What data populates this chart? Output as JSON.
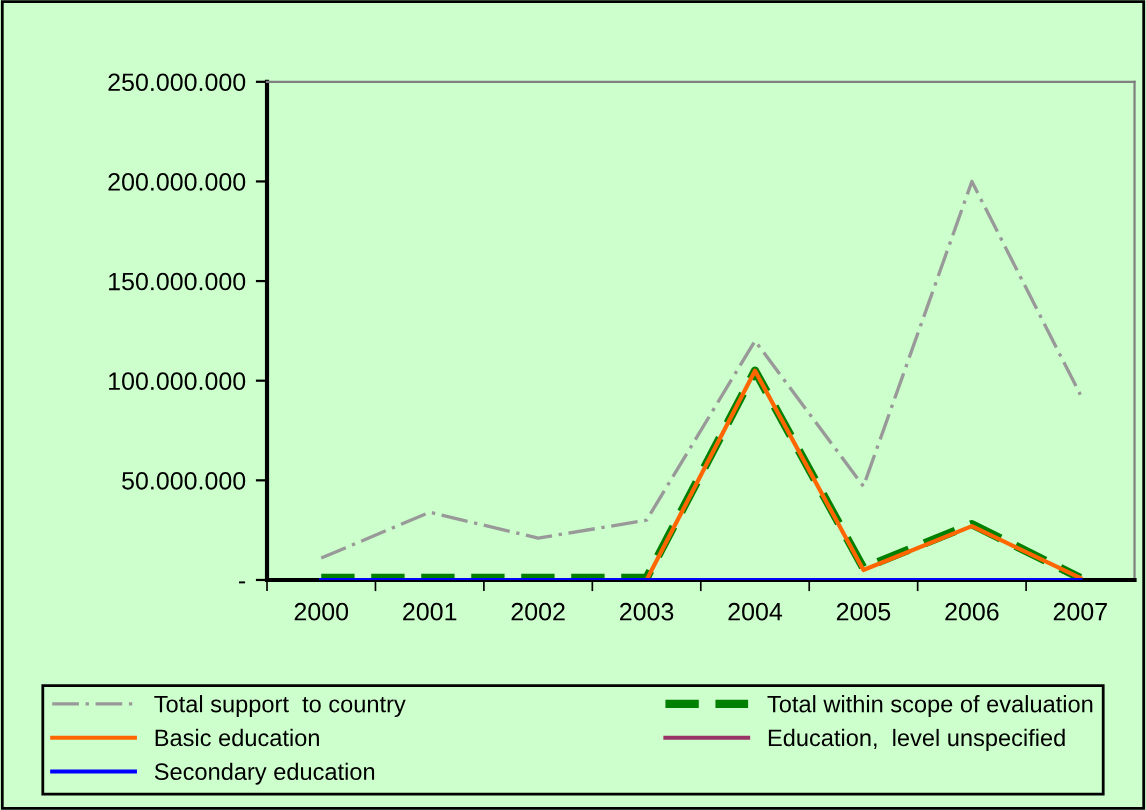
{
  "chart_data": {
    "type": "line",
    "categories": [
      "2000",
      "2001",
      "2002",
      "2003",
      "2004",
      "2005",
      "2006",
      "2007"
    ],
    "series": [
      {
        "name": "Total support  to country",
        "color": "#999999",
        "line_style": "dashdot",
        "values": [
          11000000,
          34000000,
          21000000,
          30000000,
          120000000,
          47000000,
          200000000,
          93000000
        ]
      },
      {
        "name": "Total within scope of evaluation",
        "color": "#008000",
        "line_style": "dashed",
        "values": [
          1000000,
          1000000,
          1000000,
          1000000,
          105000000,
          6000000,
          28000000,
          1000000
        ]
      },
      {
        "name": "Basic education",
        "color": "#ff6600",
        "line_style": "solid",
        "values": [
          null,
          null,
          null,
          0,
          105000000,
          5000000,
          27000000,
          1000000
        ]
      },
      {
        "name": "Education,  level unspecified",
        "color": "#993366",
        "line_style": "solid",
        "values": [
          null,
          null,
          null,
          null,
          null,
          null,
          null,
          null
        ]
      },
      {
        "name": "Secondary education",
        "color": "#0000ff",
        "line_style": "solid",
        "values": [
          0,
          0,
          0,
          0,
          0,
          0,
          0,
          0
        ]
      }
    ],
    "ylim": [
      0,
      250000000
    ],
    "yticks": [
      {
        "value": 0,
        "label": "-"
      },
      {
        "value": 50000000,
        "label": "50.000.000"
      },
      {
        "value": 100000000,
        "label": "100.000.000"
      },
      {
        "value": 150000000,
        "label": "150.000.000"
      },
      {
        "value": 200000000,
        "label": "200.000.000"
      },
      {
        "value": 250000000,
        "label": "250.000.000"
      }
    ],
    "grid": false,
    "legend": "bottom",
    "marker": "none"
  }
}
